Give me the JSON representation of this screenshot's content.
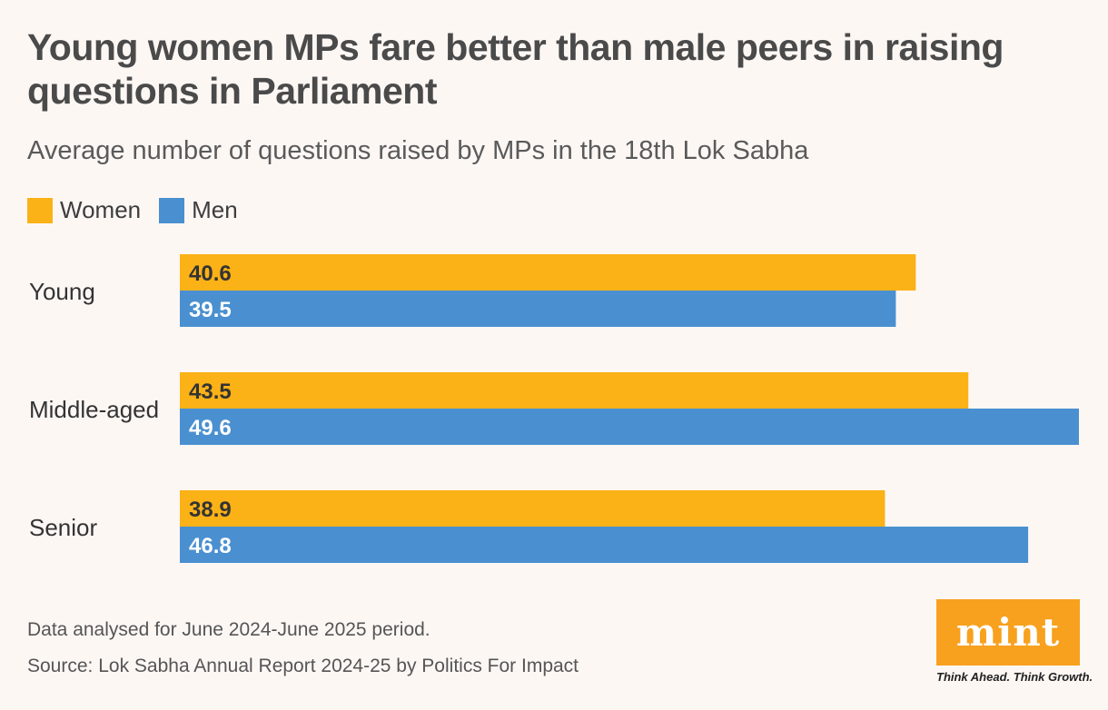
{
  "chart_data": {
    "type": "bar",
    "orientation": "horizontal",
    "title": "Young women MPs fare better than male peers in raising questions in Parliament",
    "subtitle": "Average number of questions raised by MPs in the 18th Lok Sabha",
    "categories": [
      "Young",
      "Middle-aged",
      "Senior"
    ],
    "series": [
      {
        "name": "Women",
        "color": "#fbb217",
        "label_color": "#333333",
        "values": [
          40.6,
          43.5,
          38.9
        ]
      },
      {
        "name": "Men",
        "color": "#4a90d0",
        "label_color": "#ffffff",
        "values": [
          39.5,
          49.6,
          46.8
        ]
      }
    ],
    "xlim": [
      0,
      49.6
    ],
    "legend": {
      "position": "top-left",
      "items": [
        "Women",
        "Men"
      ]
    },
    "grid": false
  },
  "footnotes": {
    "note": "Data analysed for June 2024-June 2025 period.",
    "source": "Source: Lok Sabha Annual Report 2024-25 by Politics For Impact"
  },
  "brand": {
    "logo": "mint",
    "tagline": "Think Ahead. Think Growth.",
    "color": "#f7a11e"
  }
}
